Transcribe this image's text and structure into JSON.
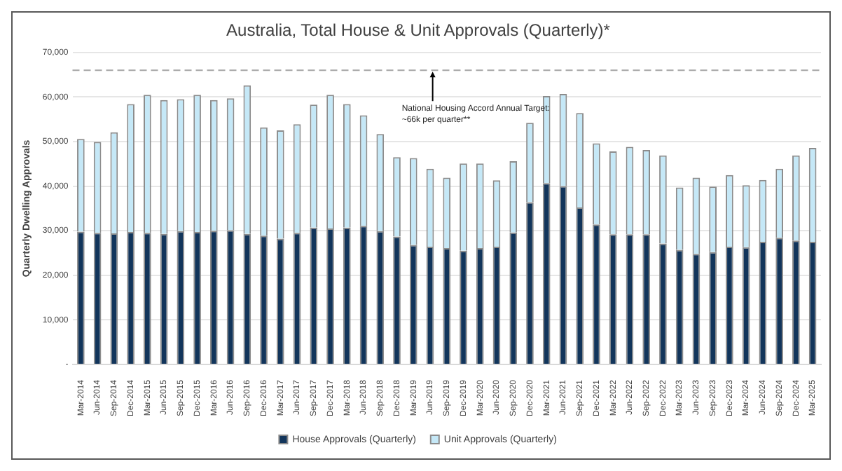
{
  "chart_data": {
    "type": "bar",
    "title": "Australia, Total House & Unit Approvals (Quarterly)*",
    "ylabel": "Quarterly Dwelling Approvals",
    "stacked": true,
    "categories": [
      "Mar-2014",
      "Jun-2014",
      "Sep-2014",
      "Dec-2014",
      "Mar-2015",
      "Jun-2015",
      "Sep-2015",
      "Dec-2015",
      "Mar-2016",
      "Jun-2016",
      "Sep-2016",
      "Dec-2016",
      "Mar-2017",
      "Jun-2017",
      "Sep-2017",
      "Dec-2017",
      "Mar-2018",
      "Jun-2018",
      "Sep-2018",
      "Dec-2018",
      "Mar-2019",
      "Jun-2019",
      "Sep-2019",
      "Dec-2019",
      "Mar-2020",
      "Jun-2020",
      "Sep-2020",
      "Dec-2020",
      "Mar-2021",
      "Jun-2021",
      "Sep-2021",
      "Dec-2021",
      "Mar-2022",
      "Jun-2022",
      "Sep-2022",
      "Dec-2022",
      "Mar-2023",
      "Jun-2023",
      "Sep-2023",
      "Dec-2023",
      "Mar-2024",
      "Jun-2024",
      "Sep-2024",
      "Dec-2024",
      "Mar-2025"
    ],
    "series": [
      {
        "name": "House Approvals (Quarterly)",
        "color": "#12355b",
        "values": [
          29800,
          29500,
          29400,
          29700,
          29500,
          29300,
          29900,
          29700,
          30000,
          30100,
          29300,
          28900,
          28200,
          29500,
          30700,
          30500,
          30700,
          31100,
          29900,
          28700,
          26800,
          26400,
          26100,
          25500,
          26100,
          26400,
          29600,
          36400,
          40700,
          40000,
          35200,
          31400,
          29200,
          29200,
          29200,
          27100,
          25700,
          24800,
          25200,
          26400,
          26300,
          27500,
          28400,
          27800,
          27500
        ]
      },
      {
        "name": "Unit Approvals (Quarterly)",
        "color": "#c5e8f7",
        "values": [
          20800,
          20400,
          22700,
          28700,
          31000,
          30000,
          29600,
          30800,
          29300,
          29600,
          33300,
          24300,
          24300,
          24400,
          27600,
          30000,
          27700,
          24800,
          21800,
          17800,
          19500,
          17500,
          15800,
          19600,
          19000,
          14900,
          16000,
          17800,
          19500,
          20700,
          21200,
          18200,
          18600,
          19600,
          18900,
          19800,
          14000,
          17100,
          14700,
          16100,
          13900,
          13900,
          15500,
          19100,
          21100
        ]
      }
    ],
    "ylim": [
      0,
      70000
    ],
    "yticks": [
      {
        "value": 0,
        "label": "-"
      },
      {
        "value": 10000,
        "label": "10,000"
      },
      {
        "value": 20000,
        "label": "20,000"
      },
      {
        "value": 30000,
        "label": "30,000"
      },
      {
        "value": 40000,
        "label": "40,000"
      },
      {
        "value": 50000,
        "label": "50,000"
      },
      {
        "value": 60000,
        "label": "60,000"
      },
      {
        "value": 70000,
        "label": "70,000"
      }
    ],
    "grid": "y",
    "legend": "bottom",
    "ref_lines": [
      {
        "axis": "y",
        "value": 66000,
        "label": "National Housing Accord Annual Target:\n~66k per quarter**",
        "color": "#a6a6a6",
        "line_style": "dashed"
      }
    ]
  }
}
